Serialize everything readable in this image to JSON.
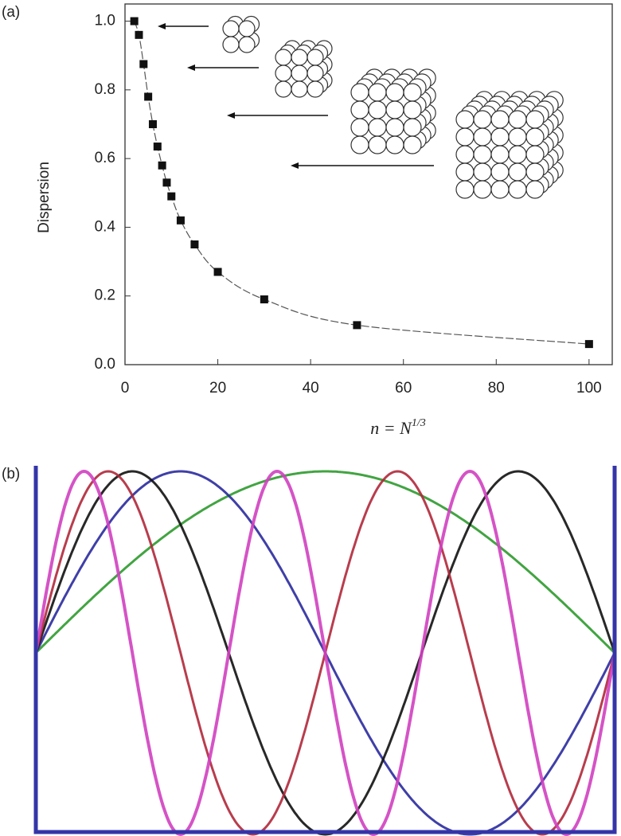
{
  "chart_data": [
    {
      "type": "scatter",
      "panel_label": "(a)",
      "y_label": "Dispersion",
      "x_label": {
        "base": "n = N",
        "exponent": "1/3"
      },
      "x": [
        2,
        3,
        4,
        5,
        6,
        7,
        8,
        9,
        10,
        12,
        15,
        20,
        30,
        50,
        100
      ],
      "values": [
        1.0,
        0.96,
        0.875,
        0.78,
        0.7,
        0.635,
        0.58,
        0.53,
        0.49,
        0.42,
        0.35,
        0.27,
        0.19,
        0.115,
        0.06
      ],
      "color": "#111111",
      "fit_color": "#555555",
      "xlim": [
        0,
        105
      ],
      "ylim": [
        0,
        1.05
      ],
      "xticks": [
        0,
        20,
        40,
        60,
        80,
        100
      ],
      "yticks": [
        {
          "value": 0,
          "label": "0.0"
        },
        0.2,
        0.4,
        0.6,
        0.8,
        {
          "value": 1,
          "label": "1.0"
        }
      ]
    },
    {
      "type": "standing-wave",
      "panel_label": "(b)",
      "frame_color": "#3535a8",
      "series": [
        {
          "color": "#2e9a2e",
          "half_waves": 1
        },
        {
          "color": "#2a2a9e",
          "half_waves": 2
        },
        {
          "color": "#111111",
          "half_waves": 3
        },
        {
          "color": "#b0283a",
          "half_waves": 4
        },
        {
          "color": "#d040c0",
          "half_waves": 6
        }
      ]
    }
  ]
}
